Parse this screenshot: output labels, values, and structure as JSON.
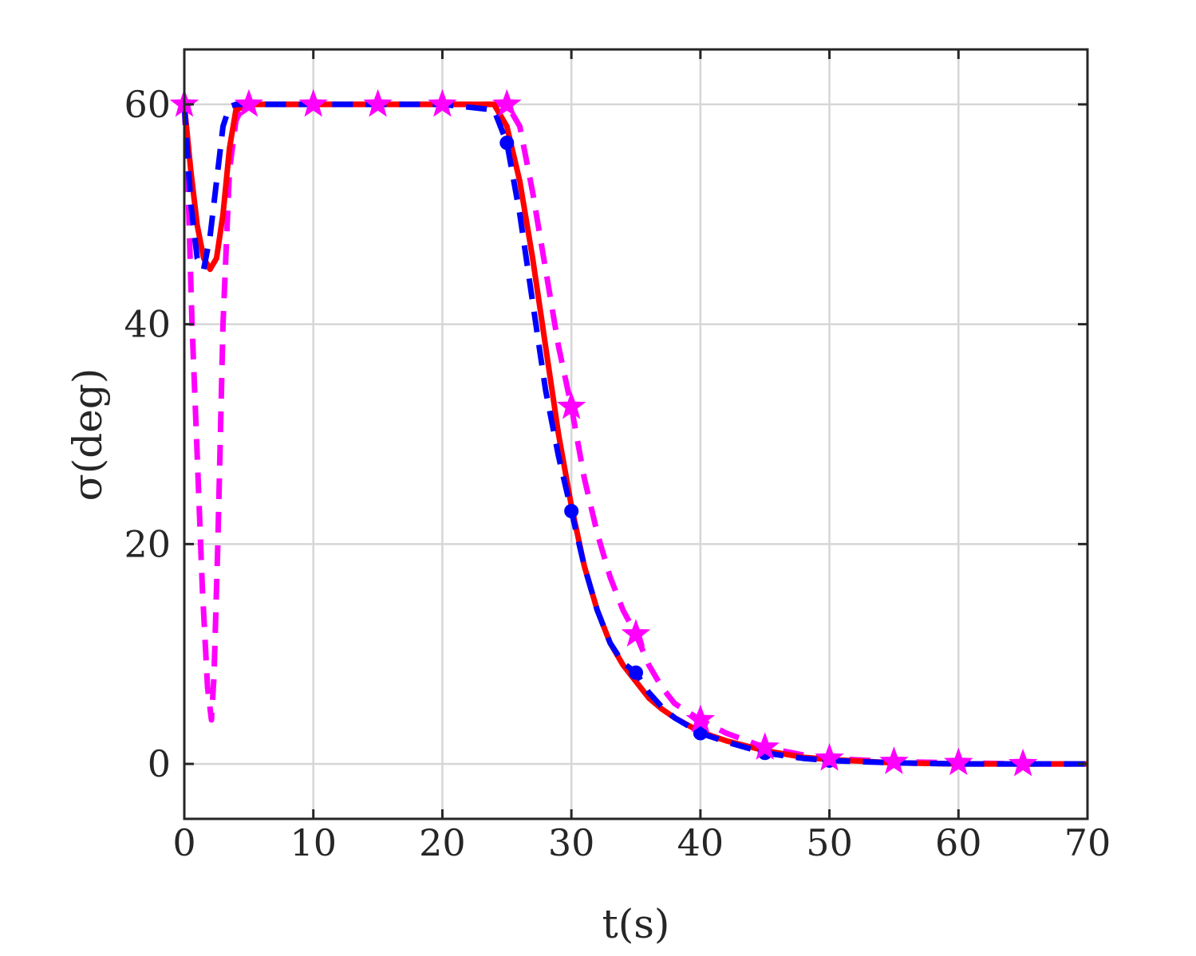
{
  "chart_data": {
    "type": "line",
    "title": "",
    "xlabel": "t(s)",
    "ylabel": "σ(deg)",
    "xlim": [
      0,
      70
    ],
    "ylim": [
      -5,
      65
    ],
    "xticks": [
      "0",
      "10",
      "20",
      "30",
      "40",
      "50",
      "60",
      "70"
    ],
    "yticks": [
      "0",
      "20",
      "40",
      "60"
    ],
    "grid": true,
    "legend": "none",
    "series": [
      {
        "color": "#ff0000",
        "style": "solid",
        "marker": "none",
        "x": [
          0,
          0.5,
          1,
          1.5,
          2,
          2.5,
          3,
          3.5,
          4,
          5,
          10,
          15,
          20,
          24,
          25,
          26,
          27,
          28,
          29,
          30,
          31,
          32,
          33,
          34,
          35,
          36,
          37,
          38,
          40,
          42,
          45,
          48,
          50,
          55,
          60,
          65,
          70
        ],
        "y": [
          60,
          54,
          49,
          46,
          45,
          46,
          50,
          56,
          59.5,
          60,
          60,
          60,
          60,
          60,
          58,
          53,
          46,
          38,
          30,
          23.5,
          18,
          14,
          11,
          9,
          7.5,
          6,
          5,
          4.2,
          2.9,
          2.1,
          1.2,
          0.6,
          0.4,
          0.1,
          0,
          0,
          0
        ]
      },
      {
        "color": "#0000ff",
        "style": "dashed",
        "marker": "circle",
        "x": [
          0,
          0.5,
          1,
          1.5,
          2,
          2.5,
          3,
          3.5,
          4,
          5,
          10,
          15,
          20,
          24,
          25,
          26,
          27,
          28,
          29,
          30,
          31,
          32,
          33,
          34,
          35,
          36,
          37,
          38,
          40,
          42,
          45,
          48,
          50,
          55,
          60,
          65,
          70
        ],
        "y": [
          60,
          51,
          46,
          45,
          48,
          53,
          58,
          59.8,
          60,
          60,
          60,
          60,
          60,
          59.5,
          56.5,
          50,
          42,
          34,
          28,
          23,
          18,
          14,
          11,
          9.2,
          8.3,
          6.5,
          5.2,
          4.2,
          2.8,
          2,
          1,
          0.5,
          0.3,
          0.1,
          0,
          0,
          0
        ]
      },
      {
        "color": "#ff00ff",
        "style": "dashed",
        "marker": "star",
        "x": [
          0,
          0.3,
          0.6,
          1,
          1.4,
          1.8,
          2.1,
          2.3,
          2.6,
          3,
          3.5,
          4,
          4.5,
          5,
          10,
          15,
          20,
          25,
          26,
          27,
          28,
          29,
          30,
          31,
          32,
          33,
          34,
          35,
          36,
          37,
          38,
          40,
          42,
          45,
          48,
          50,
          55,
          60,
          65,
          70
        ],
        "y": [
          60,
          52,
          40,
          28,
          16,
          7,
          4,
          8,
          20,
          40,
          54,
          58.5,
          59.8,
          60,
          60,
          60,
          60,
          60,
          58,
          52,
          45,
          38,
          32.5,
          26,
          21,
          17,
          14,
          11.8,
          9,
          7,
          5.5,
          4,
          2.8,
          1.5,
          0.8,
          0.5,
          0.2,
          0.1,
          0,
          0
        ]
      }
    ],
    "markers": {
      "circle_x": [
        25,
        30,
        35,
        40,
        45,
        50
      ],
      "circle_y": [
        56.5,
        23,
        8.3,
        2.8,
        1,
        0.3
      ],
      "star_x": [
        0,
        5,
        10,
        15,
        20,
        25,
        30,
        35,
        40,
        45,
        50,
        55,
        60,
        65
      ],
      "star_y": [
        60,
        60,
        60,
        60,
        60,
        60,
        32.5,
        11.8,
        4,
        1.5,
        0.5,
        0.2,
        0.1,
        0
      ]
    }
  }
}
